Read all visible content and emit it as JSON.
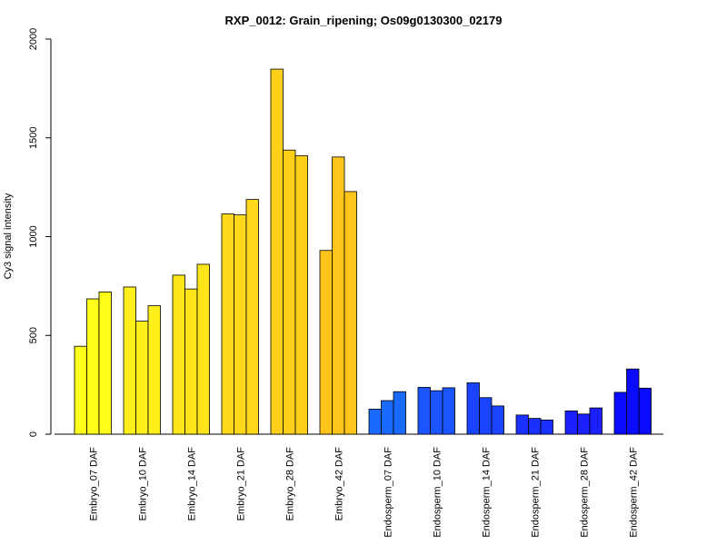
{
  "chart_data": {
    "type": "bar",
    "title": "RXP_0012: Grain_ripening; Os09g0130300_02179",
    "xlabel": "",
    "ylabel": "Cy3 signal intensity",
    "ylim": [
      0,
      2000
    ],
    "yticks": [
      0,
      500,
      1000,
      1500,
      2000
    ],
    "grid": false,
    "categories": [
      "Embryo_07 DAF",
      "Embryo_10 DAF",
      "Embryo_14 DAF",
      "Embryo_21 DAF",
      "Embryo_28 DAF",
      "Embryo_42 DAF",
      "Endosperm_07 DAF",
      "Endosperm_10 DAF",
      "Endosperm_14 DAF",
      "Endosperm_21 DAF",
      "Endosperm_28 DAF",
      "Endosperm_42 DAF"
    ],
    "replicates_per_category": 3,
    "values": [
      [
        445,
        685,
        720
      ],
      [
        745,
        572,
        650
      ],
      [
        805,
        735,
        860
      ],
      [
        1115,
        1110,
        1188
      ],
      [
        1848,
        1438,
        1410
      ],
      [
        930,
        1403,
        1228
      ],
      [
        127,
        170,
        215
      ],
      [
        237,
        220,
        235
      ],
      [
        260,
        185,
        143
      ],
      [
        97,
        80,
        72
      ],
      [
        118,
        102,
        133
      ],
      [
        212,
        330,
        233
      ]
    ],
    "colors": [
      "#ffff1a",
      "#ffef1a",
      "#ffe51a",
      "#ffd91a",
      "#ffcf1a",
      "#ffc51a",
      "#1a6aff",
      "#1a55ff",
      "#1a44ff",
      "#1a30ff",
      "#1a20ff",
      "#0a0aff"
    ]
  }
}
